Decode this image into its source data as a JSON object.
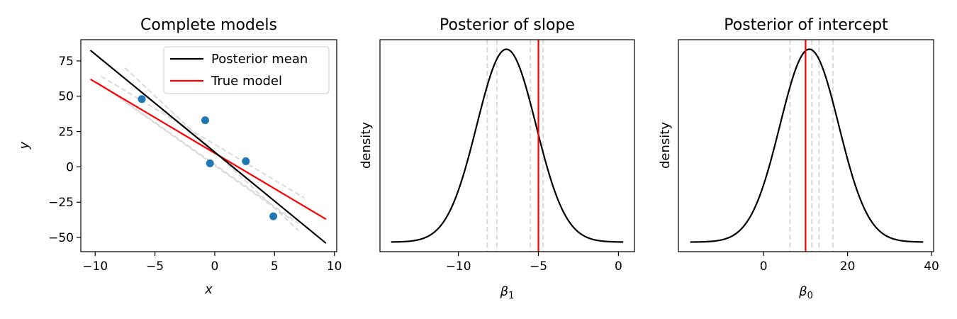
{
  "chart_data": [
    {
      "id": "models",
      "type": "line",
      "title": "Complete models",
      "xlabel": "x",
      "ylabel": "y",
      "xlim": [
        -11.2,
        10.2
      ],
      "ylim": [
        -60,
        90
      ],
      "xticks": [
        -10,
        -5,
        0,
        5,
        10
      ],
      "xtick_labels": [
        "−10",
        "−5",
        "0",
        "5",
        "10"
      ],
      "yticks": [
        -50,
        -25,
        0,
        25,
        50,
        75
      ],
      "ytick_labels": [
        "−50",
        "−25",
        "0",
        "25",
        "50",
        "75"
      ],
      "grid": false,
      "legend": {
        "location": "top-right",
        "entries": [
          {
            "label": "Posterior mean",
            "color": "#000000"
          },
          {
            "label": "True model",
            "color": "#ff0000"
          }
        ]
      },
      "points": [
        {
          "x": -6.1,
          "y": 48
        },
        {
          "x": -0.8,
          "y": 33
        },
        {
          "x": -0.4,
          "y": 2.5
        },
        {
          "x": 2.6,
          "y": 4
        },
        {
          "x": 4.9,
          "y": -35
        }
      ],
      "point_color": "#1f77b4",
      "posterior_mean": {
        "x": [
          -10.4,
          9.3
        ],
        "y": [
          82.5,
          -54
        ]
      },
      "true_model": {
        "x": [
          -10.4,
          9.3
        ],
        "y": [
          62,
          -37
        ]
      },
      "samples": [
        {
          "x": [
            -9.5,
            7.5
          ],
          "y": [
            64,
            -22
          ]
        },
        {
          "x": [
            -9.8,
            7.0
          ],
          "y": [
            60,
            -40
          ]
        },
        {
          "x": [
            -7.5,
            7.0
          ],
          "y": [
            70,
            -45
          ]
        },
        {
          "x": [
            -9.0,
            6.5
          ],
          "y": [
            55,
            -38
          ]
        },
        {
          "x": [
            -8.0,
            7.5
          ],
          "y": [
            50,
            -28
          ]
        }
      ],
      "sample_color": "#d9d9d9"
    },
    {
      "id": "slope",
      "type": "line",
      "title": "Posterior of slope",
      "xlabel": "β1",
      "ylabel": "density",
      "xlim": [
        -14.9,
        1.0
      ],
      "xticks": [
        -10,
        -5,
        0
      ],
      "xtick_labels": [
        "−10",
        "−5",
        "0"
      ],
      "curve": {
        "mean": -7.0,
        "sd": 1.85,
        "x_range": [
          -14.2,
          0.3
        ]
      },
      "curve_color": "#000000",
      "true_value": -5.0,
      "true_color": "#ff0000",
      "samples": [
        -8.2,
        -7.6,
        -5.5,
        -4.7
      ],
      "sample_color": "#d9d9d9"
    },
    {
      "id": "intercept",
      "type": "line",
      "title": "Posterior of intercept",
      "xlabel": "β0",
      "ylabel": "density",
      "xlim": [
        -20.3,
        40.5
      ],
      "xticks": [
        0,
        20,
        40
      ],
      "xtick_labels": [
        "0",
        "20",
        "40"
      ],
      "curve": {
        "mean": 10.9,
        "sd": 7.0,
        "x_range": [
          -17.5,
          38.0
        ]
      },
      "curve_color": "#000000",
      "true_value": 10.0,
      "true_color": "#ff0000",
      "samples": [
        6.3,
        11.5,
        13.2,
        16.5
      ],
      "sample_color": "#d9d9d9"
    }
  ]
}
